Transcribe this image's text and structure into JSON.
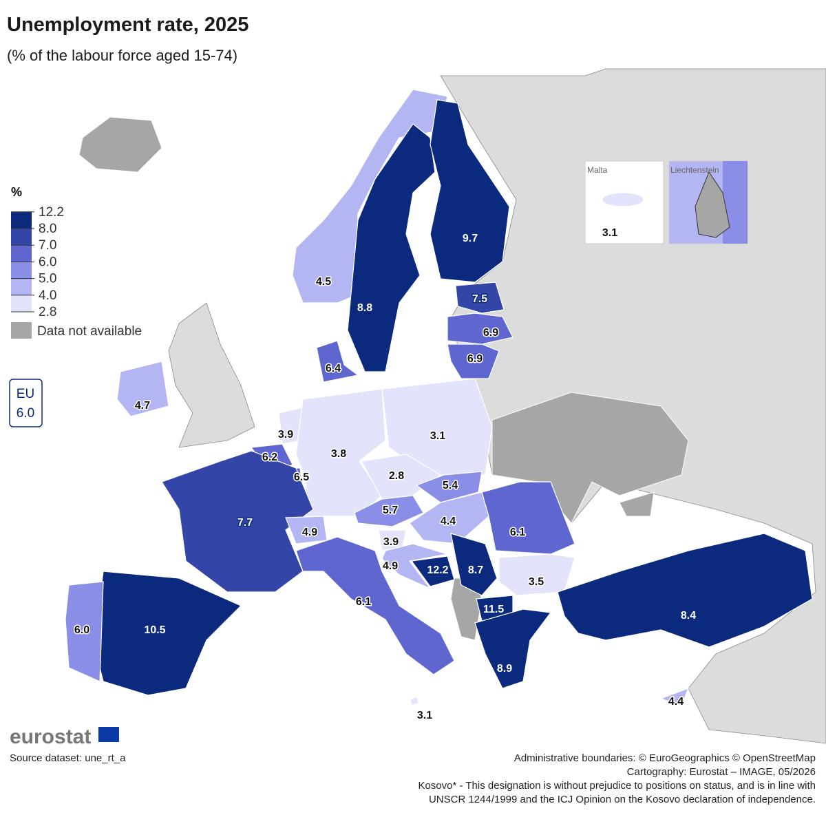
{
  "title": "Unemployment rate, 2025",
  "subtitle": "(% of the labour force aged 15-74)",
  "legend": {
    "title": "%",
    "breaks": [
      2.8,
      {
        "value": 4,
        "label": "4.0"
      },
      {
        "value": 5,
        "label": "5.0"
      },
      {
        "value": 6,
        "label": "6.0"
      },
      {
        "value": 7,
        "label": "7.0"
      },
      {
        "value": 8,
        "label": "8.0"
      },
      12.2
    ],
    "colors": [
      "#e3e4fb",
      "#b4b6f3",
      "#8a8ee6",
      "#5f66cf",
      "#3345a6",
      "#0c2a7d"
    ],
    "na_label": "Data not available",
    "na_color": "#a6a6a6"
  },
  "eu": {
    "label": "EU",
    "value": 6,
    "value_label": "6.0"
  },
  "regions": {
    "values": [
      4.5,
      8.8,
      9.7,
      7.5,
      6.9,
      6.9,
      6.4,
      4.7,
      3.9,
      6.2,
      6.5,
      3.8,
      3.1,
      2.8,
      5.4,
      5.7,
      4.4,
      6.1,
      7.7,
      4.9,
      3.9,
      4.9,
      12.2,
      8.7,
      3.5,
      11.5,
      8.4,
      10.5,
      6.0,
      6.1,
      8.9,
      4.4,
      3.1
    ],
    "value_labels": [
      "4.5",
      "8.8",
      "9.7",
      "7.5",
      "6.9",
      "6.9",
      "6.4",
      "4.7",
      "3.9",
      "6.2",
      "6.5",
      "3.8",
      "3.1",
      "2.8",
      "5.4",
      "5.7",
      "4.4",
      "6.1",
      "7.7",
      "4.9",
      "3.9",
      "4.9",
      "12.2",
      "8.7",
      "3.5",
      "11.5",
      "8.4",
      "10.5",
      "6.0",
      "6.1",
      "8.9",
      "4.4",
      "3.1"
    ]
  },
  "insets": [
    {
      "title": "Malta",
      "value": 3.1
    },
    {
      "title": "Liechtenstein"
    }
  ],
  "footer": {
    "logo": "eurostat",
    "source": "Source dataset: une_rt_a",
    "notes": [
      "Administrative boundaries: © EuroGeographics © OpenStreetMap",
      "Cartography: Eurostat – IMAGE, 05/2026",
      "Kosovo* - This designation is without prejudice to positions on status, and is in line with",
      "UNSCR 1244/1999 and the ICJ Opinion on the Kosovo declaration of independence."
    ]
  }
}
